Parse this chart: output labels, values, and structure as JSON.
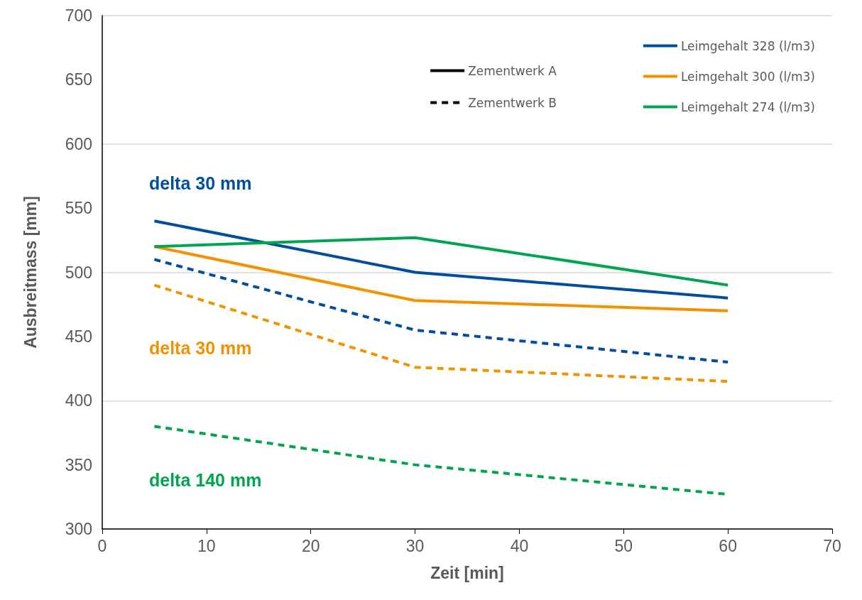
{
  "chart_data": {
    "type": "line",
    "xlabel": "Zeit [min]",
    "ylabel": "Ausbreitmass [mm]",
    "x": [
      5,
      30,
      60
    ],
    "xlim": [
      0,
      70
    ],
    "xticks": [
      0,
      10,
      20,
      30,
      40,
      50,
      60,
      70
    ],
    "ylim": [
      300,
      700
    ],
    "yticks": [
      300,
      350,
      400,
      450,
      500,
      550,
      600,
      650,
      700
    ],
    "grid": "y",
    "legend": "top right",
    "marker": "none",
    "series": [
      {
        "name": "Leimgehalt 328 (l/m3)",
        "color": "#004f9f",
        "line_style": "solid",
        "values": [
          540,
          500,
          480
        ]
      },
      {
        "name": "Leimgehalt 300 (l/m3)",
        "color": "#f39200",
        "line_style": "solid",
        "values": [
          520,
          478,
          470
        ]
      },
      {
        "name": "Leimgehalt 274 (l/m3)",
        "color": "#00a64f",
        "line_style": "solid",
        "values": [
          520,
          527,
          490
        ]
      },
      {
        "color": "#004f9f",
        "line_style": "dashed",
        "values": [
          510,
          455,
          430
        ]
      },
      {
        "color": "#f39200",
        "line_style": "dashed",
        "values": [
          490,
          426,
          415
        ]
      },
      {
        "color": "#00a64f",
        "line_style": "dashed",
        "values": [
          380,
          350,
          327
        ]
      },
      {
        "name": "Zementwerk A",
        "color": "#000000",
        "line_style": "solid",
        "values": [
          null,
          null,
          null
        ]
      },
      {
        "name": "Zementwerk B",
        "color": "#000000",
        "line_style": "dashed",
        "values": [
          null,
          null,
          null
        ]
      }
    ],
    "annotations": [
      "delta 30 mm",
      "delta 30 mm",
      "delta 140 mm"
    ]
  }
}
